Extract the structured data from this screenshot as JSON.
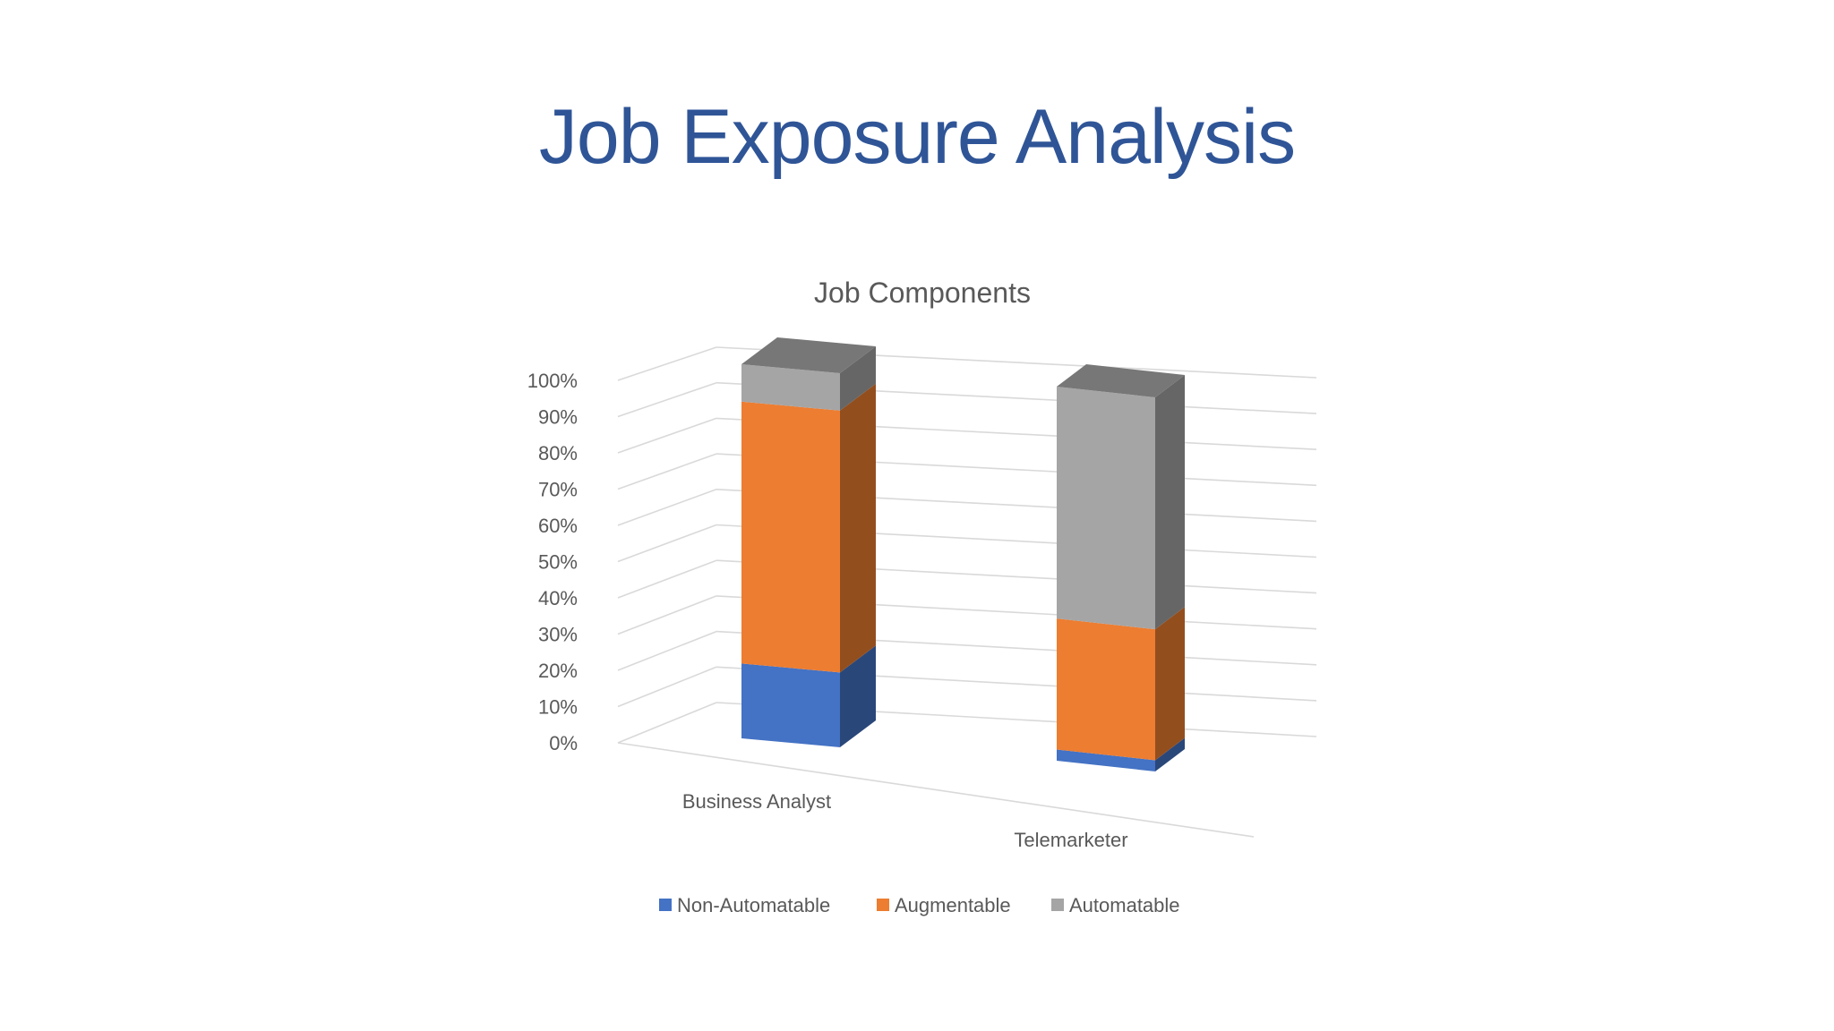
{
  "slide": {
    "title": "Job Exposure Analysis"
  },
  "colors": {
    "title": "#2f5597",
    "gridline": "#d9d9d9",
    "text": "#595959",
    "non_automatable": "#4472c4",
    "augmentable": "#ed7d31",
    "automatable": "#a5a5a5"
  },
  "chart_data": {
    "type": "bar",
    "stacked": "percent",
    "three_d": true,
    "title": "Job Components",
    "categories": [
      "Business Analyst",
      "Telemarketer"
    ],
    "series": [
      {
        "name": "Non-Automatable",
        "color": "#4472c4",
        "values": [
          20,
          3
        ]
      },
      {
        "name": "Augmentable",
        "color": "#ed7d31",
        "values": [
          70,
          35
        ]
      },
      {
        "name": "Automatable",
        "color": "#a5a5a5",
        "values": [
          10,
          62
        ]
      }
    ],
    "y_ticks": [
      "0%",
      "10%",
      "20%",
      "30%",
      "40%",
      "50%",
      "60%",
      "70%",
      "80%",
      "90%",
      "100%"
    ],
    "ylim": [
      0,
      100
    ],
    "grid": true,
    "legend_position": "bottom"
  }
}
